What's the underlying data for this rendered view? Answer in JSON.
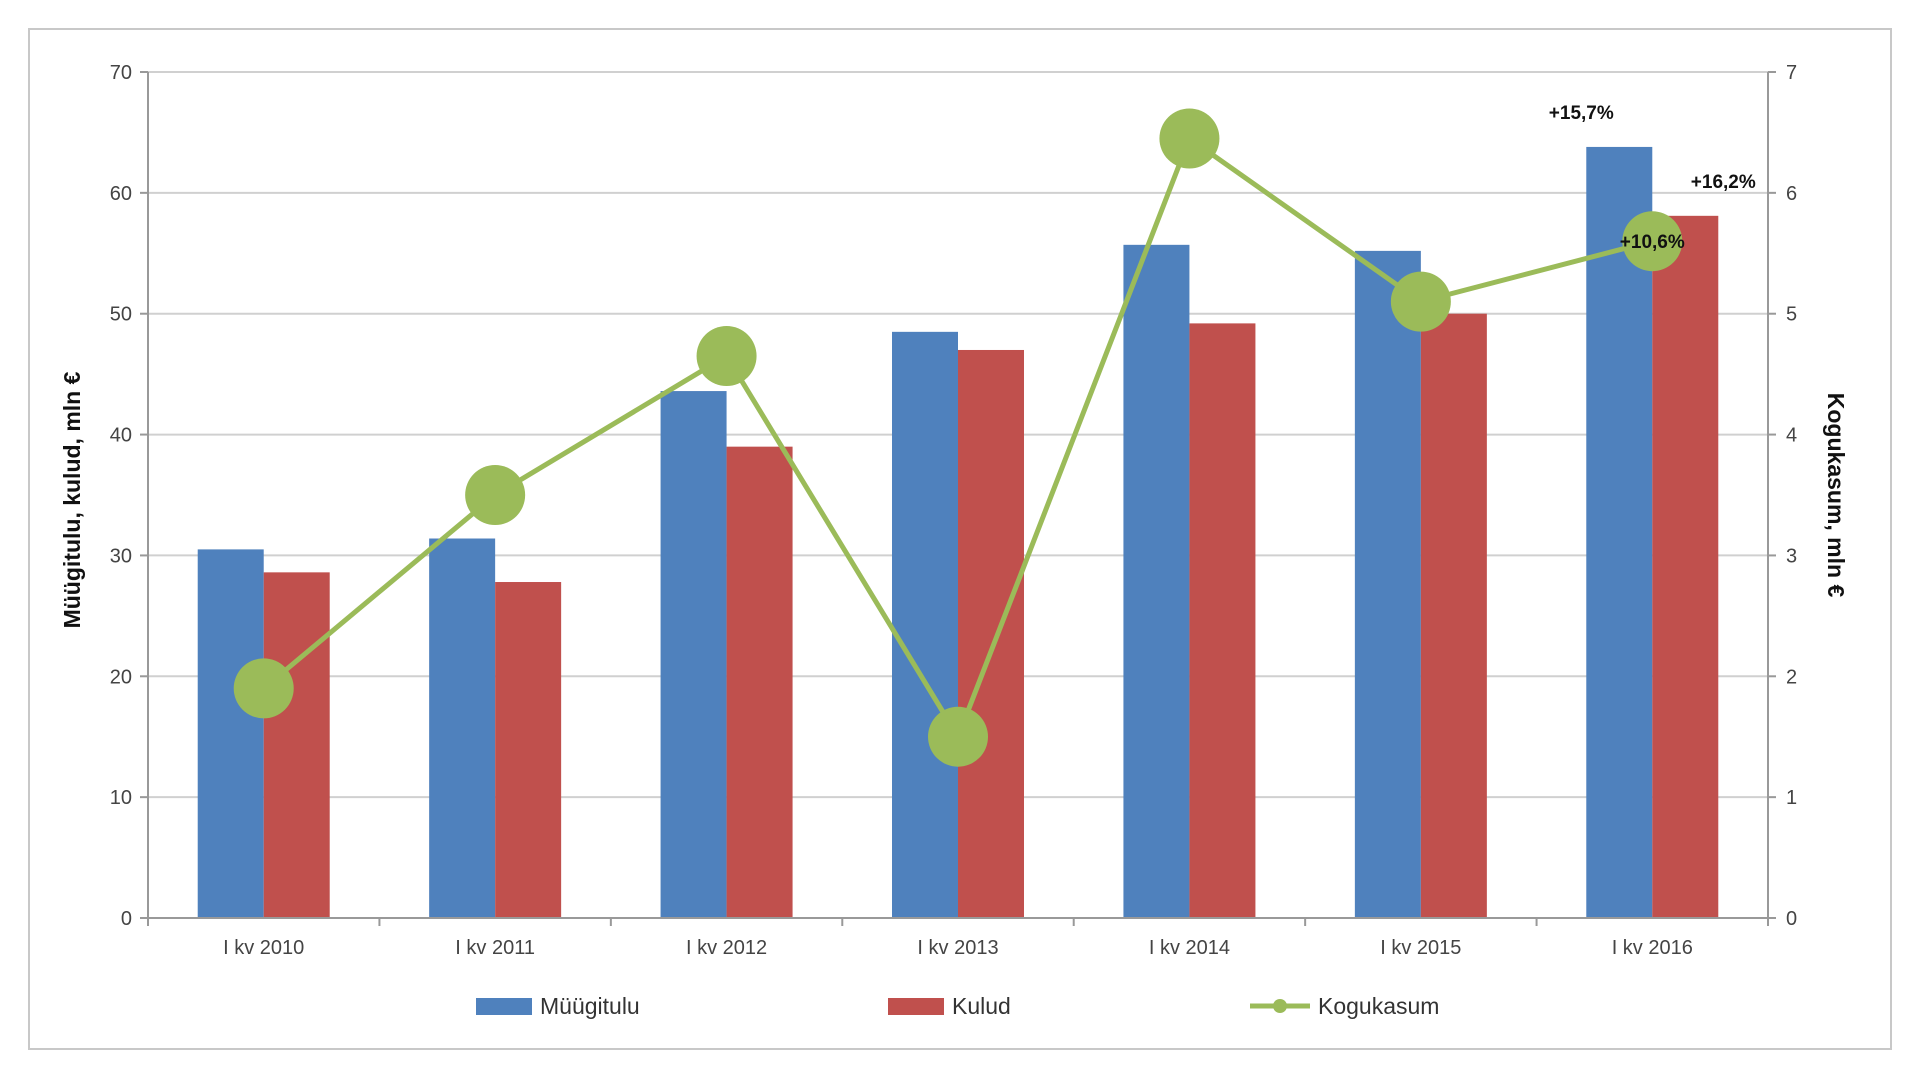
{
  "chart_data": {
    "type": "bar",
    "categories": [
      "I kv 2010",
      "I kv 2011",
      "I kv 2012",
      "I kv 2013",
      "I kv 2014",
      "I kv 2015",
      "I kv 2016"
    ],
    "series": [
      {
        "name": "Müügitulu",
        "type": "bar",
        "axis": "left",
        "color": "#4f81bd",
        "values": [
          30.5,
          31.4,
          43.6,
          48.5,
          55.7,
          55.2,
          63.8
        ]
      },
      {
        "name": "Kulud",
        "type": "bar",
        "axis": "left",
        "color": "#c0504d",
        "values": [
          28.6,
          27.8,
          39.0,
          47.0,
          49.2,
          50.0,
          58.1
        ]
      },
      {
        "name": "Kogukasum",
        "type": "line",
        "axis": "right",
        "color": "#9bbb59",
        "values": [
          1.9,
          3.5,
          4.65,
          1.5,
          6.45,
          5.1,
          5.6
        ]
      }
    ],
    "ylabel": "Müügitulu, kulud, mln €",
    "y2label": "Kogukasum, mln €",
    "ylim": [
      0,
      70
    ],
    "y2lim": [
      0,
      7
    ],
    "yticks": [
      0,
      10,
      20,
      30,
      40,
      50,
      60,
      70
    ],
    "y2ticks": [
      0,
      1,
      2,
      3,
      4,
      5,
      6,
      7
    ],
    "grid": true,
    "legend_position": "bottom",
    "annotations": [
      {
        "text": "+15,7%",
        "series": "Müügitulu",
        "category": "I kv 2016"
      },
      {
        "text": "+16,2%",
        "series": "Kulud",
        "category": "I kv 2016"
      },
      {
        "text": "+10,6%",
        "series": "Kogukasum",
        "category": "I kv 2016"
      }
    ]
  }
}
